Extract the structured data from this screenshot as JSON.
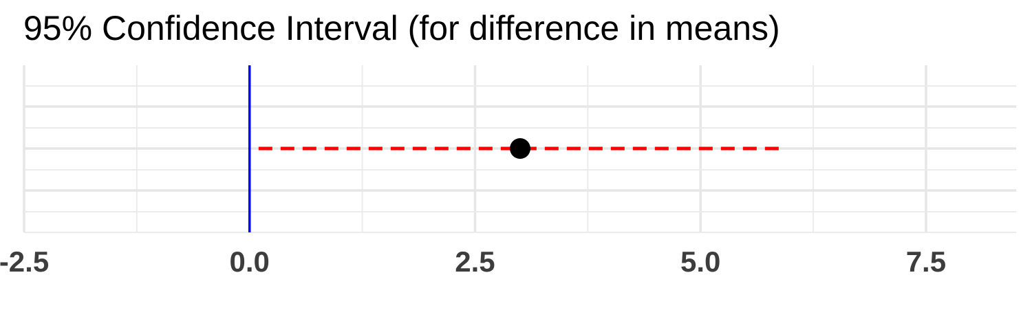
{
  "chart_data": {
    "type": "scatter",
    "title": "95% Confidence Interval (for difference in means)",
    "xlabel": "",
    "ylabel": "",
    "xlim": [
      -2.5,
      8.5
    ],
    "x_ticks": [
      -2.5,
      0.0,
      2.5,
      5.0,
      7.5
    ],
    "x_tick_labels": [
      "-2.5",
      "0.0",
      "2.5",
      "5.0",
      "7.5"
    ],
    "grid": true,
    "legend": "none",
    "reference_line": {
      "x": 0.0,
      "color": "#0000ff"
    },
    "interval": {
      "lower": 0.1,
      "upper": 5.95,
      "color": "#ff0000",
      "style": "dashed"
    },
    "point_estimate": {
      "x": 3.0,
      "color": "#000000"
    }
  }
}
